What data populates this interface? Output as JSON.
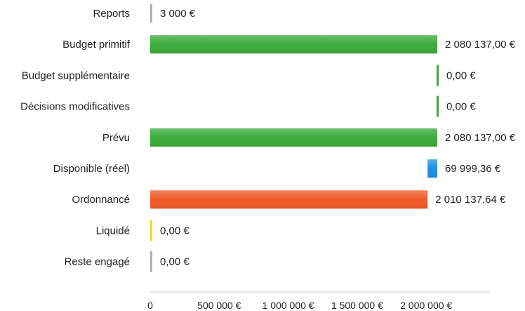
{
  "chart_data": {
    "type": "bar",
    "orientation": "horizontal",
    "title": "",
    "xlabel": "",
    "ylabel": "",
    "xlim": [
      0,
      2400000
    ],
    "grid": false,
    "legend": "none",
    "x_ticks": [
      {
        "value": 0,
        "label": "0"
      },
      {
        "value": 500000,
        "label": "500 000 €"
      },
      {
        "value": 1000000,
        "label": "1 000 000 €"
      },
      {
        "value": 1500000,
        "label": "1 500 000 €"
      },
      {
        "value": 2000000,
        "label": "2 000 000 €"
      }
    ],
    "bars": [
      {
        "category": "Reports",
        "start": 0,
        "value": 3000,
        "label": "3 000 €",
        "color": "#b0b0b0"
      },
      {
        "category": "Budget primitif",
        "start": 0,
        "value": 2080137.0,
        "label": "2 080 137,00 €",
        "color": "#3aab3a"
      },
      {
        "category": "Budget supplémentaire",
        "start": 2080137.0,
        "value": 0,
        "label": "0,00 €",
        "color": "#3aab3a"
      },
      {
        "category": "Décisions modificatives",
        "start": 2080137.0,
        "value": 0,
        "label": "0,00 €",
        "color": "#3aab3a"
      },
      {
        "category": "Prévu",
        "start": 0,
        "value": 2080137.0,
        "label": "2 080 137,00 €",
        "color": "#3aab3a"
      },
      {
        "category": "Disponible (réel)",
        "start": 2010137.64,
        "value": 69999.36,
        "label": "69 999,36 €",
        "color": "#1e90e0"
      },
      {
        "category": "Ordonnancé",
        "start": 0,
        "value": 2010137.64,
        "label": "2 010 137,64 €",
        "color": "#f05a28"
      },
      {
        "category": "Liquidé",
        "start": 0,
        "value": 0,
        "label": "0,00 €",
        "color": "#e8e020"
      },
      {
        "category": "Reste engagé",
        "start": 0,
        "value": 0,
        "label": "0,00 €",
        "color": "#b0b0b0"
      }
    ]
  }
}
